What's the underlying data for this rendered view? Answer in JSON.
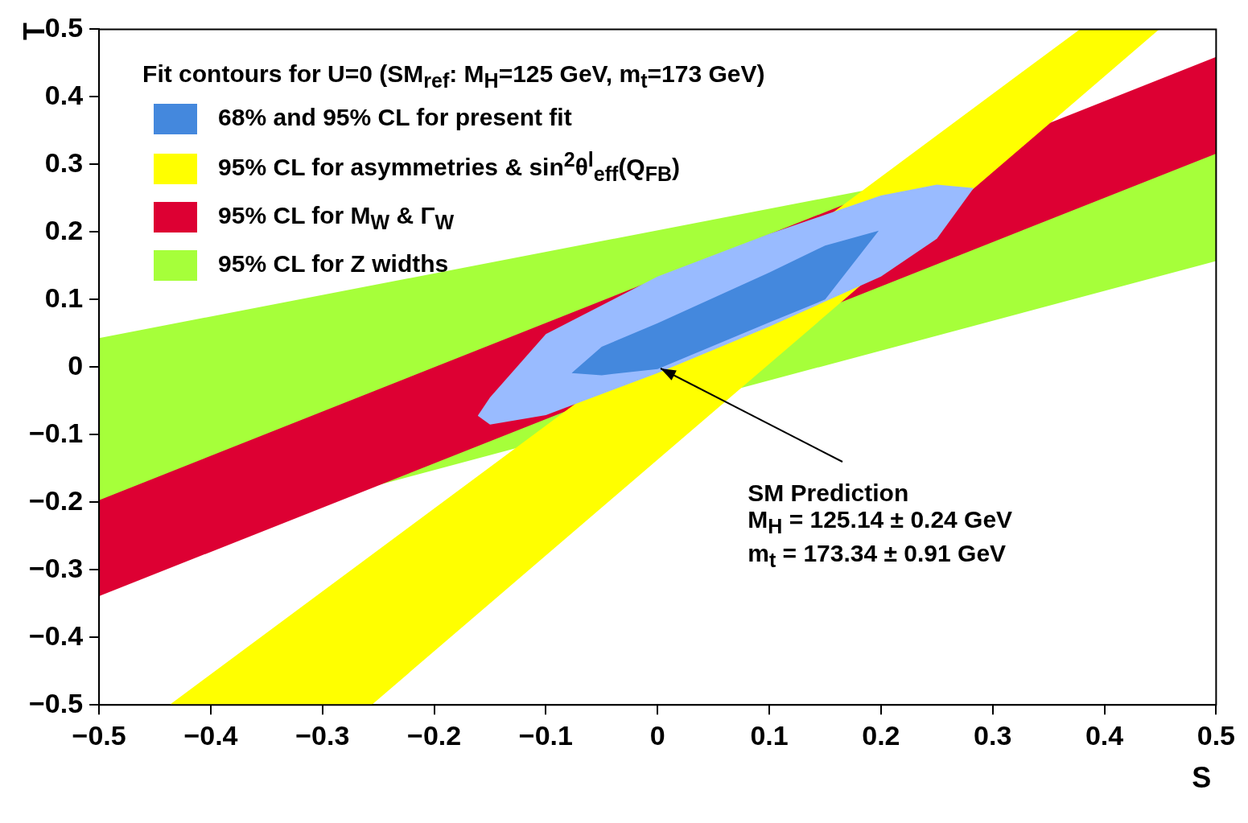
{
  "chart_data": {
    "type": "line",
    "xlabel": "S",
    "ylabel": "T",
    "legend_title": "Fit contours for U=0 (SM$_{ref}$: M$_{H}$=125 GeV, m$_{t}$=173 GeV)",
    "legend": "top left",
    "grid": false,
    "xlim": [
      -0.5,
      0.5
    ],
    "ylim": [
      -0.5,
      0.5
    ],
    "xticks": [
      {
        "value": -0.5,
        "label": "−0.5"
      },
      {
        "value": -0.4,
        "label": "−0.4"
      },
      {
        "value": -0.3,
        "label": "−0.3"
      },
      {
        "value": -0.2,
        "label": "−0.2"
      },
      {
        "value": -0.1,
        "label": "−0.1"
      },
      0,
      0.1,
      0.2,
      0.3,
      0.4,
      0.5
    ],
    "yticks": [
      {
        "value": -0.5,
        "label": "−0.5"
      },
      {
        "value": -0.4,
        "label": "−0.4"
      },
      {
        "value": -0.3,
        "label": "−0.3"
      },
      {
        "value": -0.2,
        "label": "−0.2"
      },
      {
        "value": -0.1,
        "label": "−0.1"
      },
      0,
      0.1,
      0.2,
      0.3,
      0.4,
      0.5
    ],
    "series": [
      {
        "name": "95% CL for Z widths",
        "color": "#a6ff3a",
        "x": [
          -0.5,
          0.5
        ],
        "values": [
          null,
          null
        ],
        "lower": [
          -0.285,
          0.157
        ],
        "upper": [
          0.043,
          0.362
        ]
      },
      {
        "name": "95% CL for M$_{W}$ & Γ$_{W}$",
        "color": "#dd0033",
        "x": [
          -0.5,
          0.5
        ],
        "values": [
          null,
          null
        ],
        "lower": [
          -0.339,
          0.316
        ],
        "upper": [
          -0.197,
          0.459
        ]
      },
      {
        "name": "95% CL for asymmetries & sin$^{2}$θ$^{l}$$_{eff}$(Q$_{FB}$)",
        "color": "#ffff00",
        "x": [
          -0.437,
          -0.256,
          0.378,
          0.449
        ],
        "values": [
          null,
          null,
          null,
          null
        ],
        "lower": [
          -0.5,
          -0.5,
          0.399,
          0.5
        ],
        "upper": [
          -0.5,
          -0.278,
          0.5,
          0.5
        ]
      },
      {
        "color": "#99bbff",
        "x": [
          -0.161,
          -0.15,
          -0.1,
          0,
          0.1,
          0.2,
          0.25,
          0.283
        ],
        "values": [
          null,
          null,
          null,
          null,
          null,
          null,
          null,
          null
        ],
        "lower": [
          -0.072,
          -0.085,
          -0.071,
          -0.009,
          0.06,
          0.134,
          0.19,
          0.265
        ],
        "upper": [
          -0.072,
          -0.045,
          0.049,
          0.134,
          0.197,
          0.254,
          0.27,
          0.265
        ]
      },
      {
        "name": "68% and 95% CL for present fit",
        "color": "#4488dd",
        "x": [
          -0.077,
          -0.05,
          0,
          0.1,
          0.15,
          0.198
        ],
        "values": [
          null,
          null,
          null,
          null,
          null,
          null
        ],
        "lower": [
          -0.009,
          -0.012,
          -0.003,
          0.066,
          0.1,
          0.202
        ],
        "upper": [
          -0.009,
          0.03,
          0.065,
          0.14,
          0.18,
          0.202
        ]
      }
    ],
    "annotations": [
      {
        "text": "SM Prediction\nM$_{H}$ = 125.14 ± 0.24 GeV\nm$_{t}$ = 173.34 ± 0.91 GeV",
        "x": 0,
        "y": 0
      }
    ]
  }
}
